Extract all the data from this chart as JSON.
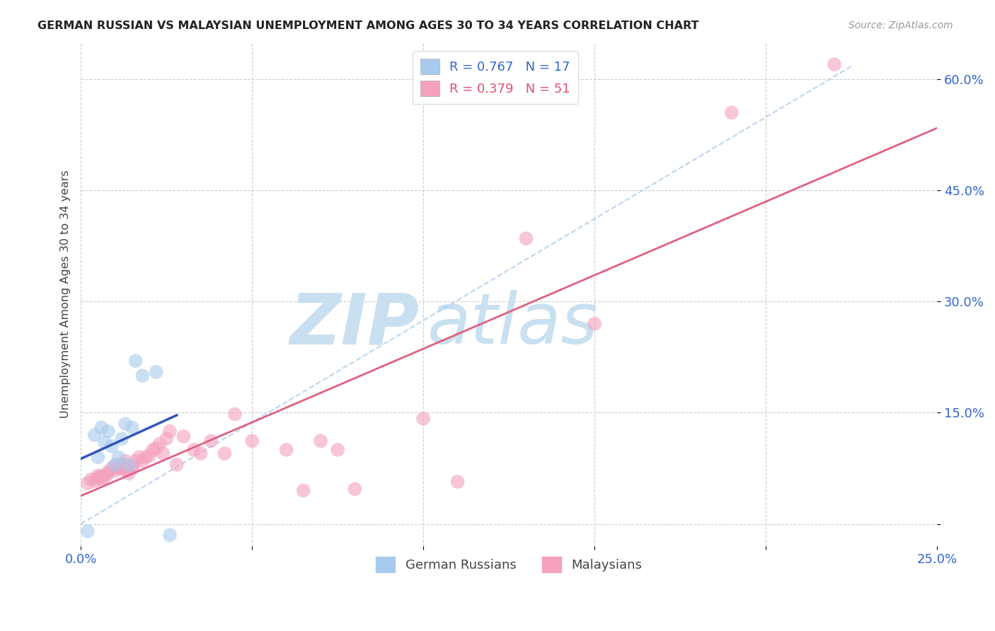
{
  "title": "GERMAN RUSSIAN VS MALAYSIAN UNEMPLOYMENT AMONG AGES 30 TO 34 YEARS CORRELATION CHART",
  "source": "Source: ZipAtlas.com",
  "ylabel": "Unemployment Among Ages 30 to 34 years",
  "xmin": 0.0,
  "xmax": 0.25,
  "ymin": -0.03,
  "ymax": 0.65,
  "yticks": [
    0.0,
    0.15,
    0.3,
    0.45,
    0.6
  ],
  "ytick_labels": [
    "",
    "15.0%",
    "30.0%",
    "45.0%",
    "60.0%"
  ],
  "xticks": [
    0.0,
    0.05,
    0.1,
    0.15,
    0.2,
    0.25
  ],
  "xtick_labels": [
    "0.0%",
    "",
    "",
    "",
    "",
    "25.0%"
  ],
  "color_blue": "#A8CAEE",
  "color_pink": "#F4A0BE",
  "color_blue_line": "#3355BB",
  "color_pink_line": "#E06080",
  "color_diag": "#AACCEE",
  "watermark_zip": "ZIP",
  "watermark_atlas": "atlas",
  "watermark_color_zip": "#C8E0F0",
  "watermark_color_atlas": "#C8E0F0",
  "german_russian_x": [
    0.002,
    0.004,
    0.005,
    0.006,
    0.007,
    0.008,
    0.009,
    0.01,
    0.011,
    0.012,
    0.013,
    0.014,
    0.015,
    0.016,
    0.018,
    0.022,
    0.026
  ],
  "german_russian_y": [
    -0.01,
    0.12,
    0.09,
    0.13,
    0.11,
    0.125,
    0.105,
    0.08,
    0.09,
    0.115,
    0.135,
    0.08,
    0.13,
    0.22,
    0.2,
    0.205,
    -0.015
  ],
  "malaysian_x": [
    0.002,
    0.003,
    0.004,
    0.005,
    0.005,
    0.006,
    0.006,
    0.007,
    0.008,
    0.008,
    0.009,
    0.01,
    0.01,
    0.011,
    0.012,
    0.012,
    0.013,
    0.013,
    0.014,
    0.015,
    0.015,
    0.016,
    0.017,
    0.018,
    0.019,
    0.02,
    0.021,
    0.022,
    0.023,
    0.024,
    0.025,
    0.026,
    0.028,
    0.03,
    0.033,
    0.035,
    0.038,
    0.042,
    0.045,
    0.05,
    0.06,
    0.065,
    0.07,
    0.075,
    0.08,
    0.1,
    0.11,
    0.13,
    0.15,
    0.19,
    0.22
  ],
  "malaysian_y": [
    0.055,
    0.06,
    0.058,
    0.062,
    0.065,
    0.06,
    0.065,
    0.063,
    0.07,
    0.068,
    0.075,
    0.078,
    0.072,
    0.075,
    0.075,
    0.08,
    0.073,
    0.085,
    0.068,
    0.075,
    0.078,
    0.085,
    0.09,
    0.085,
    0.09,
    0.092,
    0.1,
    0.102,
    0.108,
    0.095,
    0.115,
    0.125,
    0.08,
    0.118,
    0.1,
    0.095,
    0.112,
    0.095,
    0.148,
    0.112,
    0.1,
    0.045,
    0.112,
    0.1,
    0.047,
    0.142,
    0.057,
    0.385,
    0.27,
    0.555,
    0.62
  ],
  "R_blue": 0.767,
  "N_blue": 17,
  "R_pink": 0.379,
  "N_pink": 51,
  "blue_line_x0": -0.005,
  "blue_line_x1": 0.028,
  "pink_line_x0": 0.0,
  "pink_line_x1": 0.25
}
